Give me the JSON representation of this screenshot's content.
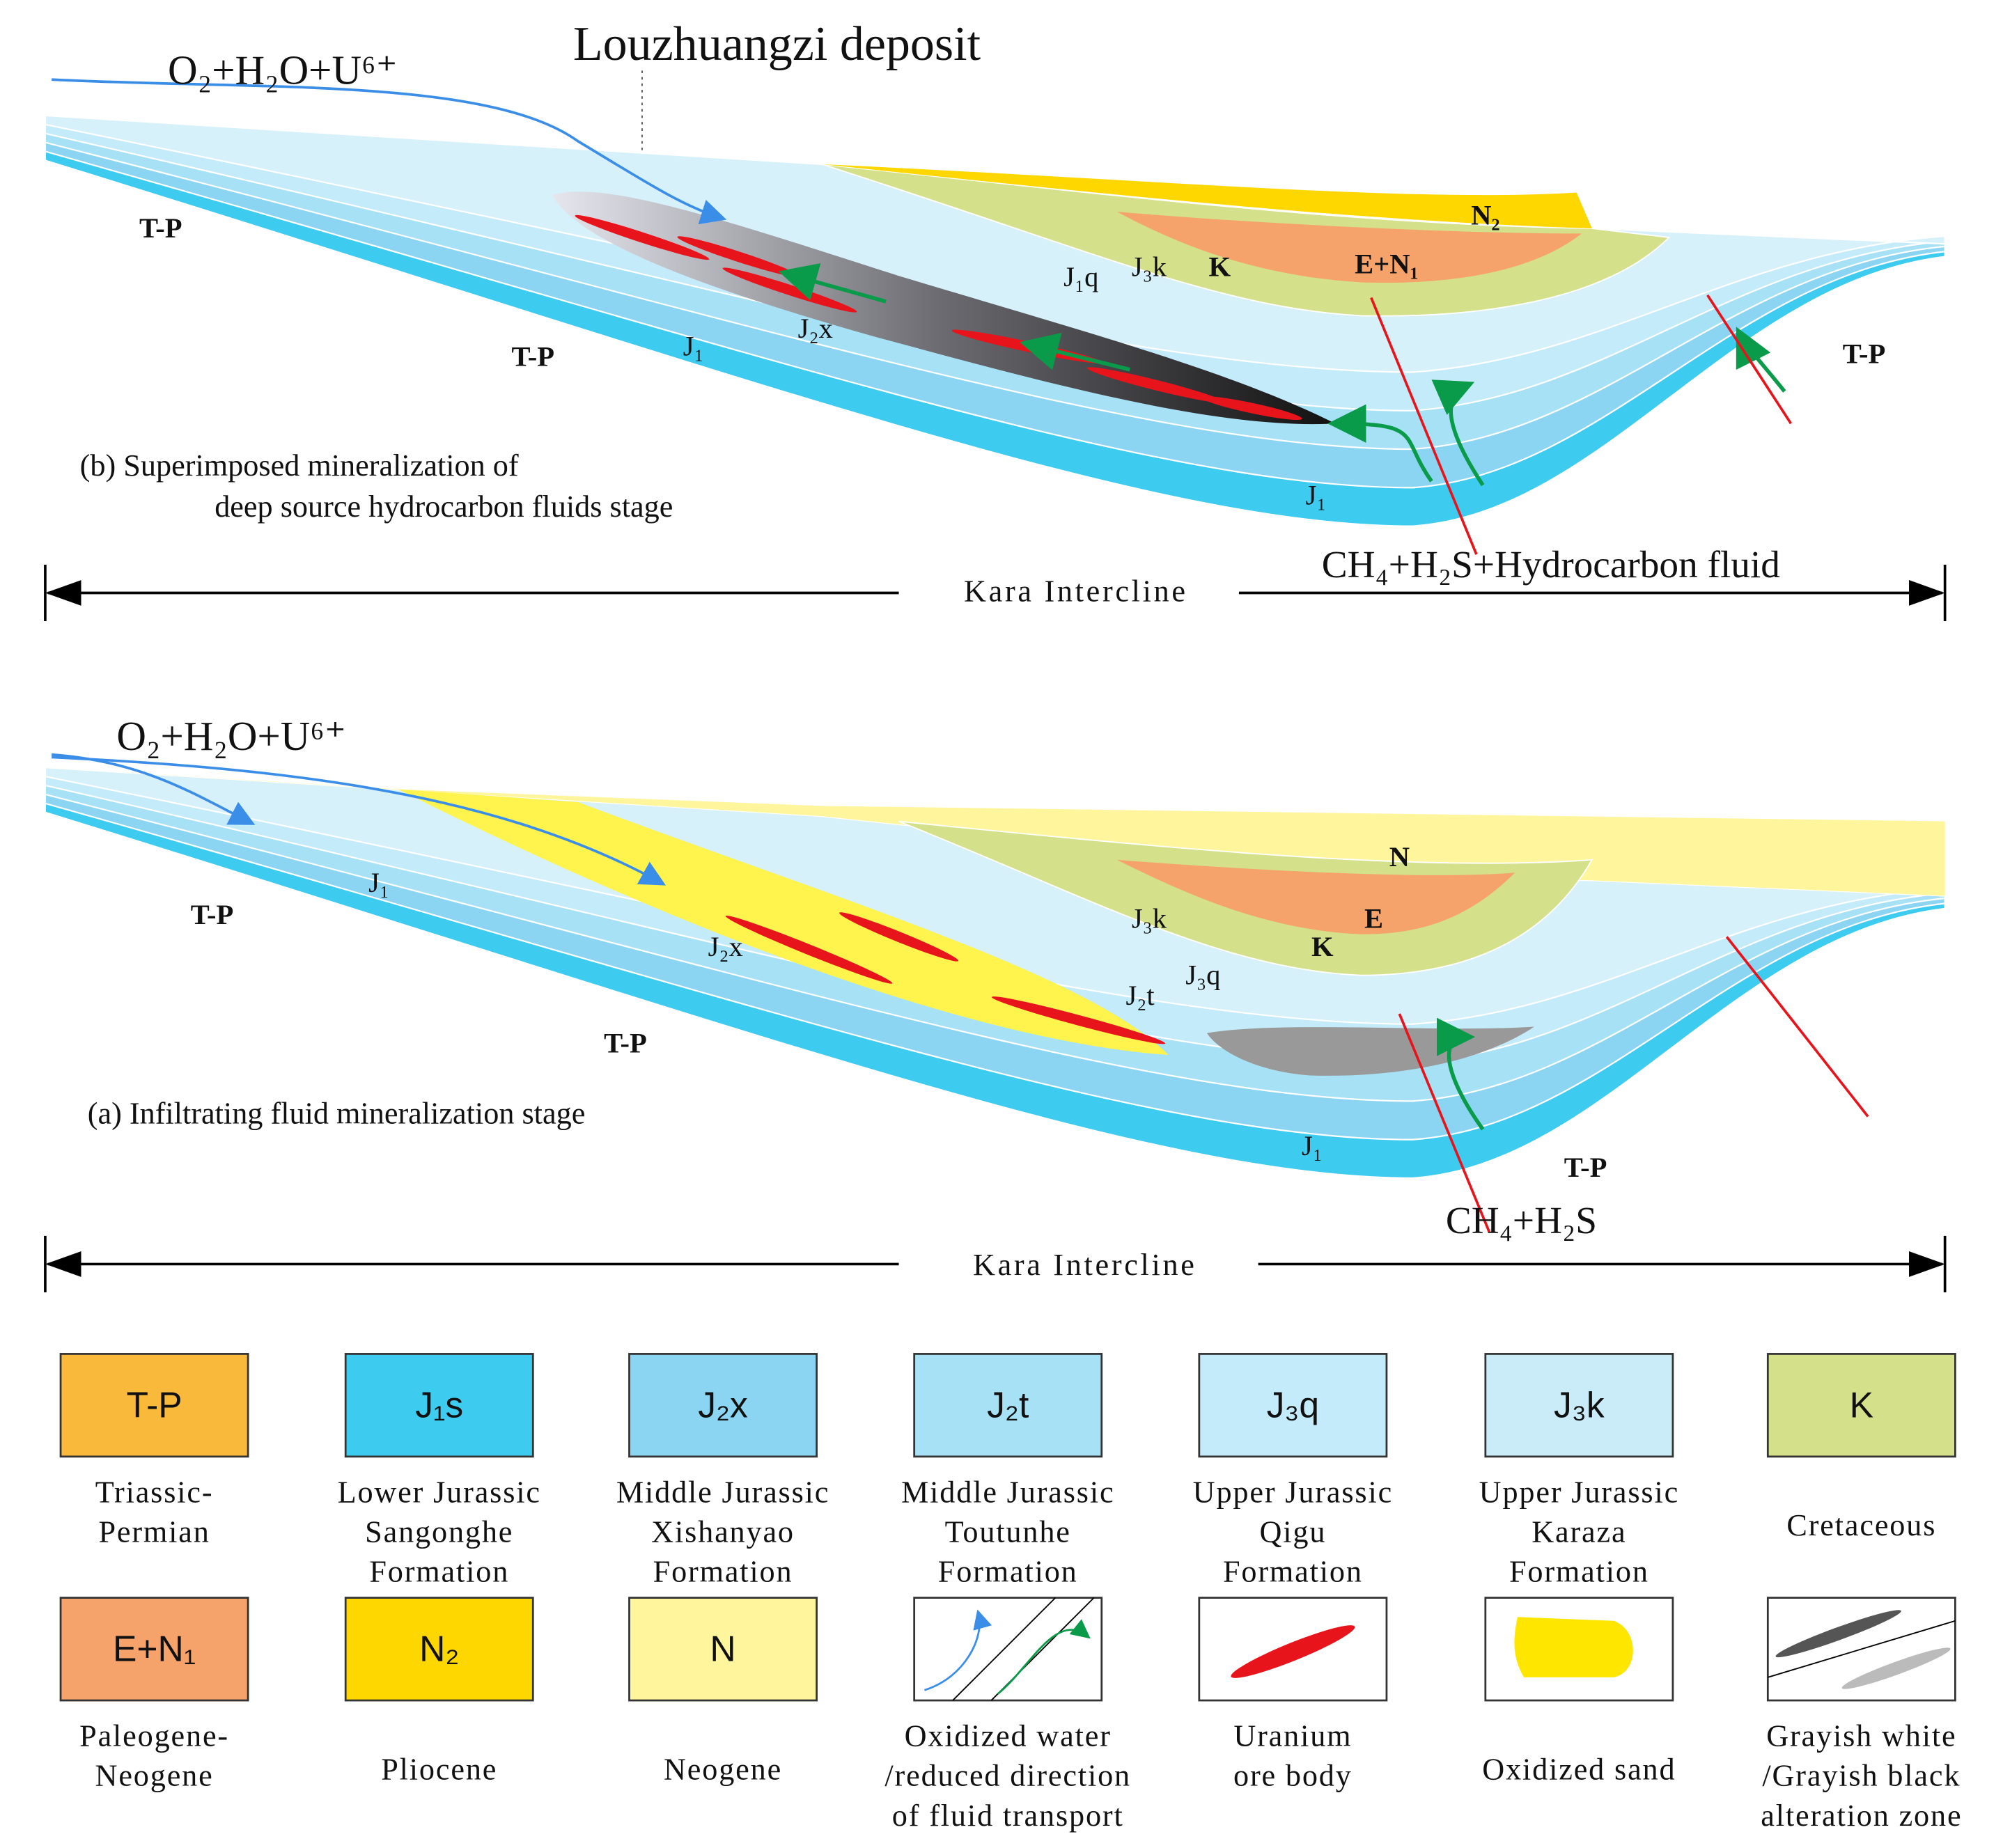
{
  "panels": [
    {
      "title": "Louzhuangzi deposit",
      "inflow": "O₂+H₂O+U⁶⁺",
      "caption": [
        "(b) Superimposed mineralization of",
        "deep source hydrocarbon fluids stage"
      ],
      "outflow": "CH₄+H₂S+Hydrocarbon fluid",
      "scale_label": "Kara Intercline",
      "labels": [
        "T-P",
        "T-P",
        "J₁",
        "J₂x",
        "J₁q",
        "J₃k",
        "K",
        "E+N₁",
        "N₂",
        "J₁",
        "T-P"
      ]
    },
    {
      "inflow": "O₂+H₂O+U⁶⁺",
      "caption": [
        "(a) Infiltrating  fluid  mineralization stage"
      ],
      "outflow": "CH₄+H₂S",
      "scale_label": "Kara Intercline",
      "labels": [
        "T-P",
        "J₁",
        "J₂x",
        "T-P",
        "J₃k",
        "J₃q",
        "J₂t",
        "K",
        "E",
        "N",
        "J₁",
        "T-P"
      ]
    }
  ],
  "legend": [
    {
      "code": "T-P",
      "color": "#f9b93a",
      "description": [
        "Triassic-",
        "Permian"
      ]
    },
    {
      "code": "J₁s",
      "color": "#3ecbf0",
      "description": [
        "Lower Jurassic",
        "Sangonghe",
        "Formation"
      ]
    },
    {
      "code": "J₂x",
      "color": "#8bd5f2",
      "description": [
        "Middle Jurassic",
        "Xishanyao",
        "Formation"
      ]
    },
    {
      "code": "J₂t",
      "color": "#a6e1f5",
      "description": [
        "Middle Jurassic",
        "Toutunhe",
        "Formation"
      ]
    },
    {
      "code": "J₃q",
      "color": "#c4ebf9",
      "description": [
        "Upper Jurassic",
        "Qigu",
        "Formation"
      ]
    },
    {
      "code": "J₃k",
      "color": "#c9ecf8",
      "description": [
        "Upper Jurassic",
        "Karaza",
        "Formation"
      ]
    },
    {
      "code": "K",
      "color": "#d4e08a",
      "description": [
        "Cretaceous"
      ]
    },
    {
      "code": "E+N₁",
      "color": "#f5a36b",
      "description": [
        "Paleogene-",
        "Neogene"
      ]
    },
    {
      "code": "N₂",
      "color": "#ffd700",
      "description": [
        "Pliocene"
      ]
    },
    {
      "code": "N",
      "color": "#fff59c",
      "description": [
        "Neogene"
      ]
    },
    {
      "description": [
        "Oxidized water",
        "/reduced direction",
        "of fluid transport"
      ]
    },
    {
      "description": [
        "Uranium",
        "ore body"
      ]
    },
    {
      "description": [
        "Oxidized  sand"
      ]
    },
    {
      "description": [
        "Grayish white",
        "/Grayish black",
        "alteration  zone"
      ]
    }
  ]
}
